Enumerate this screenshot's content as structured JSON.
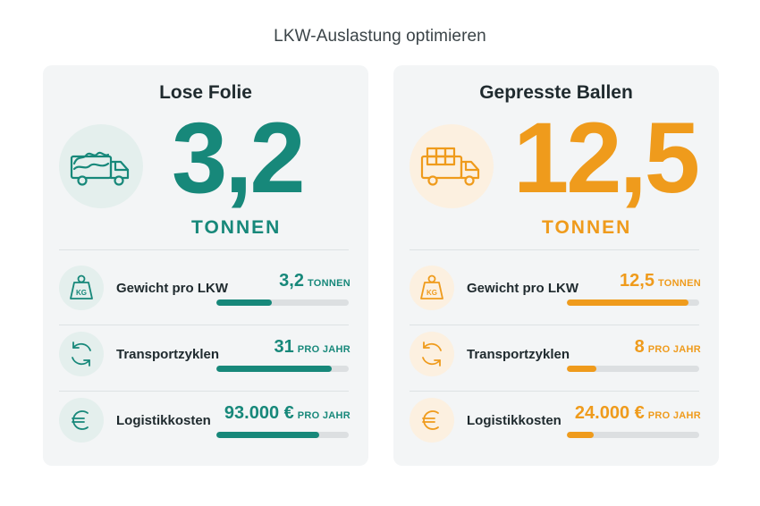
{
  "page": {
    "title": "LKW-Auslastung optimieren"
  },
  "theme": {
    "teal": "#17887a",
    "orange": "#ef9b1c"
  },
  "cards": [
    {
      "title": "Lose Folie",
      "hero_icon": "truck-loose-film-icon",
      "hero_value": "3,2",
      "hero_unit": "TONNEN",
      "metrics": [
        {
          "icon": "weight-kg-icon",
          "icon_text": "KG",
          "label": "Gewicht pro LKW",
          "value": "3,2",
          "unit": "TONNEN",
          "fill": 0.42
        },
        {
          "icon": "cycle-arrows-icon",
          "label": "Transportzyklen",
          "value": "31",
          "unit": "PRO JAHR",
          "fill": 0.87
        },
        {
          "icon": "euro-icon",
          "label": "Logistikkosten",
          "value": "93.000 €",
          "unit": "PRO JAHR",
          "fill": 0.78
        }
      ]
    },
    {
      "title": "Gepresste Ballen",
      "hero_icon": "truck-pressed-bales-icon",
      "hero_value": "12,5",
      "hero_unit": "TONNEN",
      "metrics": [
        {
          "icon": "weight-kg-icon",
          "icon_text": "KG",
          "label": "Gewicht pro LKW",
          "value": "12,5",
          "unit": "TONNEN",
          "fill": 0.92
        },
        {
          "icon": "cycle-arrows-icon",
          "label": "Transportzyklen",
          "value": "8",
          "unit": "PRO JAHR",
          "fill": 0.22
        },
        {
          "icon": "euro-icon",
          "label": "Logistikkosten",
          "value": "24.000 €",
          "unit": "PRO JAHR",
          "fill": 0.2
        }
      ]
    }
  ]
}
